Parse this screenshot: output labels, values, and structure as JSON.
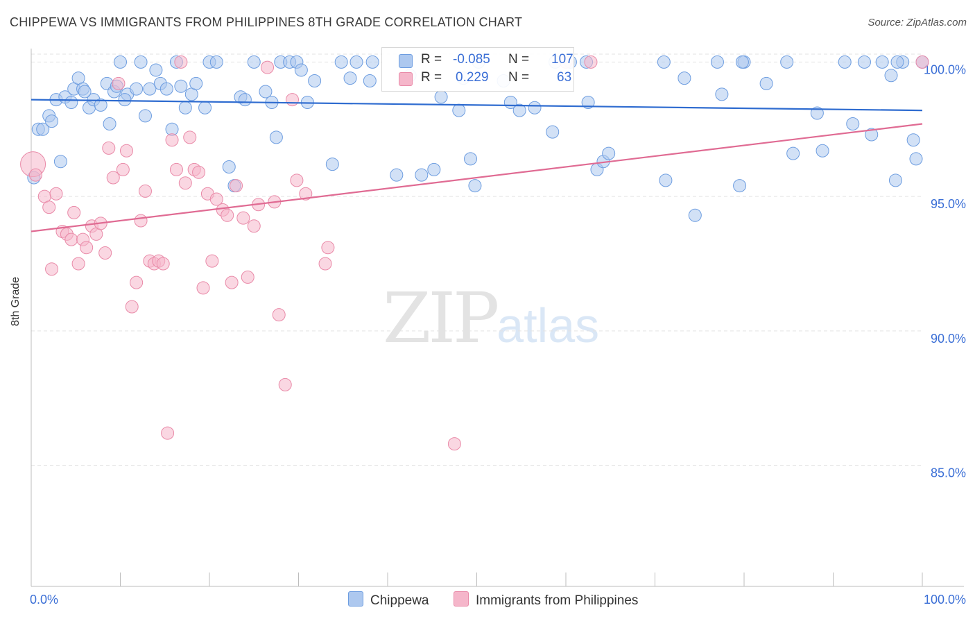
{
  "title": "CHIPPEWA VS IMMIGRANTS FROM PHILIPPINES 8TH GRADE CORRELATION CHART",
  "source": "Source: ZipAtlas.com",
  "watermark": {
    "zip": "ZIP",
    "atlas": "atlas"
  },
  "legend": {
    "r_label": "R =",
    "n_label": "N =",
    "rows": [
      {
        "series": "Chippewa",
        "r": "-0.085",
        "n": "107"
      },
      {
        "series": "Immigrants from Philippines",
        "r": "0.229",
        "n": "63"
      }
    ]
  },
  "colors": {
    "chippewa_fill": "#adc8ef",
    "chippewa_stroke": "#6d9de0",
    "chippewa_line": "#2f6cd0",
    "phil_fill": "#f5b6ca",
    "phil_stroke": "#e98aa8",
    "phil_line": "#e06b93",
    "tick_label": "#3b6fd6",
    "grid": "#e3e3e3"
  },
  "chart_data": {
    "type": "scatter",
    "title": "CHIPPEWA VS IMMIGRANTS FROM PHILIPPINES 8TH GRADE CORRELATION CHART",
    "xlabel": "",
    "ylabel": "8th Grade",
    "xlim": [
      0,
      100
    ],
    "ylim": [
      80.5,
      100.5
    ],
    "x_tick_labels": [
      "0.0%",
      "100.0%"
    ],
    "y_ticks": [
      85,
      90,
      95,
      100
    ],
    "y_tick_labels": [
      "85.0%",
      "90.0%",
      "95.0%",
      "100.0%"
    ],
    "grid": true,
    "legend_position": "bottom",
    "series": [
      {
        "name": "Chippewa",
        "trend": {
          "x0": 0,
          "y0": 98.6,
          "x1": 100,
          "y1": 98.2
        },
        "points": [
          [
            0.3,
            95.7
          ],
          [
            0.8,
            97.5
          ],
          [
            1.3,
            97.5
          ],
          [
            2.0,
            98.0
          ],
          [
            2.3,
            97.8
          ],
          [
            2.8,
            98.6
          ],
          [
            3.3,
            96.3
          ],
          [
            3.8,
            98.7
          ],
          [
            4.5,
            98.5
          ],
          [
            4.8,
            99.0
          ],
          [
            5.3,
            99.4
          ],
          [
            5.8,
            99.0
          ],
          [
            6.5,
            98.3
          ],
          [
            7.0,
            98.6
          ],
          [
            7.8,
            98.4
          ],
          [
            8.5,
            99.2
          ],
          [
            9.3,
            98.9
          ],
          [
            8.8,
            97.7
          ],
          [
            10.0,
            100
          ],
          [
            9.6,
            99.1
          ],
          [
            10.8,
            98.8
          ],
          [
            10.5,
            98.6
          ],
          [
            11.8,
            99.0
          ],
          [
            12.3,
            100
          ],
          [
            12.8,
            98.0
          ],
          [
            13.3,
            99.0
          ],
          [
            14.0,
            99.7
          ],
          [
            14.5,
            99.2
          ],
          [
            15.2,
            99.0
          ],
          [
            15.8,
            97.5
          ],
          [
            16.3,
            100
          ],
          [
            16.8,
            99.1
          ],
          [
            17.3,
            98.3
          ],
          [
            18.0,
            98.8
          ],
          [
            18.5,
            99.2
          ],
          [
            19.5,
            98.3
          ],
          [
            20.0,
            100
          ],
          [
            20.8,
            100
          ],
          [
            22.2,
            96.1
          ],
          [
            22.8,
            95.4
          ],
          [
            23.5,
            98.7
          ],
          [
            24.0,
            98.6
          ],
          [
            25.0,
            100
          ],
          [
            26.3,
            98.9
          ],
          [
            27.0,
            98.5
          ],
          [
            27.5,
            97.2
          ],
          [
            28.0,
            100
          ],
          [
            29.0,
            100
          ],
          [
            29.8,
            100
          ],
          [
            30.3,
            99.7
          ],
          [
            31.0,
            98.5
          ],
          [
            31.8,
            99.3
          ],
          [
            33.8,
            96.2
          ],
          [
            34.8,
            100
          ],
          [
            35.8,
            99.4
          ],
          [
            38.3,
            100
          ],
          [
            41.0,
            95.8
          ],
          [
            43.8,
            95.8
          ],
          [
            45.2,
            96.0
          ],
          [
            46.0,
            98.7
          ],
          [
            48.0,
            98.2
          ],
          [
            48.5,
            99.4
          ],
          [
            49.3,
            96.4
          ],
          [
            49.8,
            95.4
          ],
          [
            50.2,
            100
          ],
          [
            53.0,
            99.3
          ],
          [
            53.8,
            98.5
          ],
          [
            54.8,
            98.2
          ],
          [
            56.5,
            98.3
          ],
          [
            58.5,
            97.4
          ],
          [
            60.5,
            100
          ],
          [
            62.5,
            98.5
          ],
          [
            63.5,
            96.0
          ],
          [
            64.2,
            96.3
          ],
          [
            64.8,
            96.6
          ],
          [
            71.0,
            100
          ],
          [
            71.2,
            95.6
          ],
          [
            73.3,
            99.4
          ],
          [
            74.5,
            94.3
          ],
          [
            77.5,
            98.8
          ],
          [
            77.0,
            100
          ],
          [
            79.5,
            95.4
          ],
          [
            80.0,
            100
          ],
          [
            82.5,
            99.2
          ],
          [
            84.8,
            100
          ],
          [
            85.5,
            96.6
          ],
          [
            88.2,
            98.1
          ],
          [
            88.8,
            96.7
          ],
          [
            91.3,
            100
          ],
          [
            92.2,
            97.7
          ],
          [
            93.5,
            100
          ],
          [
            94.3,
            97.3
          ],
          [
            95.5,
            100
          ],
          [
            96.5,
            99.5
          ],
          [
            97.0,
            95.6
          ],
          [
            97.8,
            100
          ],
          [
            99.0,
            97.1
          ],
          [
            99.3,
            96.4
          ],
          [
            100,
            100
          ],
          [
            97.2,
            100
          ],
          [
            79.8,
            100
          ],
          [
            62.3,
            100
          ],
          [
            38.0,
            99.3
          ],
          [
            58.8,
            100
          ],
          [
            42.5,
            99.5
          ],
          [
            36.5,
            100
          ],
          [
            6.0,
            98.9
          ]
        ]
      },
      {
        "name": "Immigrants from Philippines",
        "trend": {
          "x0": 0,
          "y0": 93.7,
          "x1": 100,
          "y1": 97.7
        },
        "points": [
          [
            0.2,
            96.2
          ],
          [
            0.5,
            95.8
          ],
          [
            1.5,
            95.0
          ],
          [
            2.0,
            94.6
          ],
          [
            2.3,
            92.3
          ],
          [
            2.8,
            95.1
          ],
          [
            3.5,
            93.7
          ],
          [
            4.0,
            93.6
          ],
          [
            4.5,
            93.4
          ],
          [
            4.8,
            94.4
          ],
          [
            5.3,
            92.5
          ],
          [
            5.8,
            93.4
          ],
          [
            6.2,
            93.1
          ],
          [
            6.8,
            93.9
          ],
          [
            7.3,
            93.6
          ],
          [
            7.8,
            94.0
          ],
          [
            8.3,
            92.9
          ],
          [
            8.7,
            96.8
          ],
          [
            9.2,
            95.7
          ],
          [
            9.8,
            99.2
          ],
          [
            10.3,
            96.0
          ],
          [
            10.7,
            96.7
          ],
          [
            11.3,
            90.9
          ],
          [
            11.8,
            91.8
          ],
          [
            12.3,
            94.1
          ],
          [
            12.8,
            95.2
          ],
          [
            13.3,
            92.6
          ],
          [
            13.8,
            92.5
          ],
          [
            14.3,
            92.6
          ],
          [
            14.8,
            92.5
          ],
          [
            15.3,
            86.2
          ],
          [
            15.8,
            97.1
          ],
          [
            16.3,
            96.0
          ],
          [
            16.8,
            100
          ],
          [
            17.3,
            95.5
          ],
          [
            17.8,
            97.2
          ],
          [
            18.3,
            96.0
          ],
          [
            18.8,
            95.9
          ],
          [
            19.3,
            91.6
          ],
          [
            19.8,
            95.1
          ],
          [
            20.3,
            92.6
          ],
          [
            20.8,
            94.9
          ],
          [
            21.5,
            94.5
          ],
          [
            22.0,
            94.3
          ],
          [
            22.5,
            91.8
          ],
          [
            23.0,
            95.4
          ],
          [
            23.8,
            94.2
          ],
          [
            24.3,
            92.0
          ],
          [
            25.0,
            93.9
          ],
          [
            25.5,
            94.7
          ],
          [
            26.5,
            99.8
          ],
          [
            27.3,
            94.8
          ],
          [
            27.8,
            90.6
          ],
          [
            28.5,
            88.0
          ],
          [
            29.3,
            98.6
          ],
          [
            29.8,
            95.6
          ],
          [
            30.8,
            95.1
          ],
          [
            33.3,
            93.1
          ],
          [
            33.0,
            92.5
          ],
          [
            47.5,
            85.8
          ],
          [
            60.0,
            100
          ],
          [
            62.8,
            100
          ],
          [
            100,
            100
          ]
        ]
      }
    ]
  }
}
